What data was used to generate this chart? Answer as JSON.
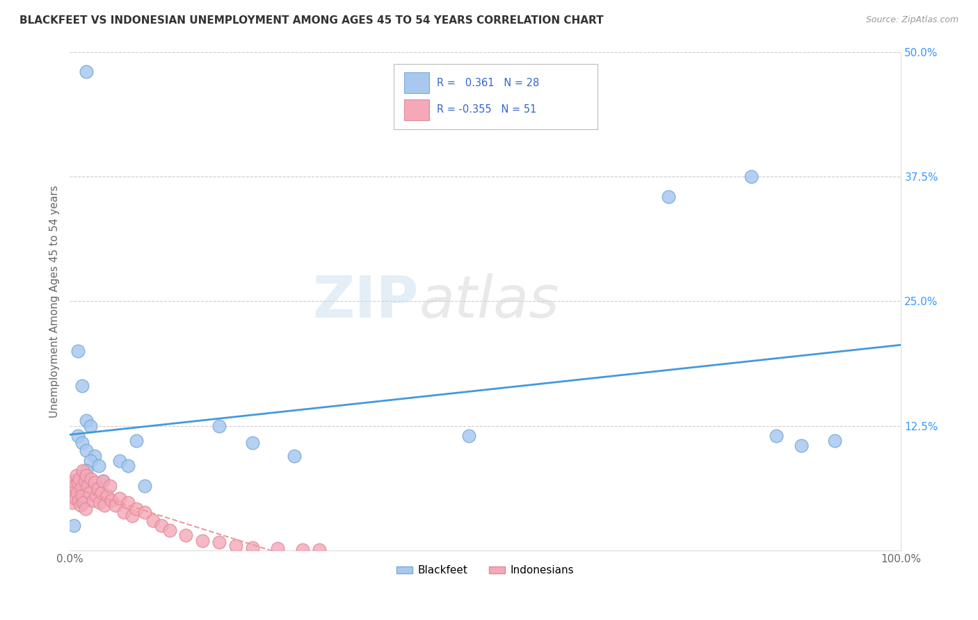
{
  "title": "BLACKFEET VS INDONESIAN UNEMPLOYMENT AMONG AGES 45 TO 54 YEARS CORRELATION CHART",
  "source": "Source: ZipAtlas.com",
  "ylabel": "Unemployment Among Ages 45 to 54 years",
  "xlim": [
    0.0,
    1.0
  ],
  "ylim": [
    0.0,
    0.5
  ],
  "xticks": [
    0.0,
    0.25,
    0.5,
    0.75,
    1.0
  ],
  "xticklabels": [
    "0.0%",
    "",
    "",
    "",
    "100.0%"
  ],
  "yticks": [
    0.0,
    0.125,
    0.25,
    0.375,
    0.5
  ],
  "yticklabels": [
    "",
    "12.5%",
    "25.0%",
    "37.5%",
    "50.0%"
  ],
  "blackfeet_color": "#a8c8f0",
  "indonesian_color": "#f4a8b8",
  "blackfeet_edge": "#7aaad4",
  "indonesian_edge": "#e08898",
  "trend_blue": "#4499dd",
  "trend_pink": "#ee9999",
  "R_blackfeet": 0.361,
  "N_blackfeet": 28,
  "R_indonesian": -0.355,
  "N_indonesian": 51,
  "blackfeet_x": [
    0.02,
    0.01,
    0.015,
    0.02,
    0.025,
    0.01,
    0.015,
    0.02,
    0.03,
    0.025,
    0.035,
    0.02,
    0.04,
    0.015,
    0.18,
    0.22,
    0.27,
    0.48,
    0.72,
    0.82,
    0.85,
    0.88,
    0.92,
    0.005,
    0.08,
    0.06,
    0.07,
    0.09
  ],
  "blackfeet_y": [
    0.48,
    0.2,
    0.165,
    0.13,
    0.125,
    0.115,
    0.108,
    0.1,
    0.095,
    0.09,
    0.085,
    0.08,
    0.07,
    0.065,
    0.125,
    0.108,
    0.095,
    0.115,
    0.355,
    0.375,
    0.115,
    0.105,
    0.11,
    0.025,
    0.11,
    0.09,
    0.085,
    0.065
  ],
  "indonesian_x": [
    0.002,
    0.003,
    0.004,
    0.005,
    0.006,
    0.007,
    0.008,
    0.009,
    0.01,
    0.011,
    0.012,
    0.013,
    0.014,
    0.015,
    0.016,
    0.017,
    0.018,
    0.019,
    0.02,
    0.022,
    0.024,
    0.026,
    0.028,
    0.03,
    0.032,
    0.034,
    0.036,
    0.038,
    0.04,
    0.042,
    0.045,
    0.048,
    0.05,
    0.055,
    0.06,
    0.065,
    0.07,
    0.075,
    0.08,
    0.09,
    0.1,
    0.11,
    0.12,
    0.14,
    0.16,
    0.18,
    0.2,
    0.22,
    0.25,
    0.28,
    0.3
  ],
  "indonesian_y": [
    0.055,
    0.048,
    0.06,
    0.07,
    0.065,
    0.052,
    0.075,
    0.058,
    0.068,
    0.05,
    0.072,
    0.045,
    0.063,
    0.055,
    0.08,
    0.048,
    0.07,
    0.042,
    0.075,
    0.065,
    0.058,
    0.072,
    0.05,
    0.068,
    0.055,
    0.062,
    0.048,
    0.058,
    0.07,
    0.045,
    0.055,
    0.065,
    0.05,
    0.045,
    0.052,
    0.038,
    0.048,
    0.035,
    0.042,
    0.038,
    0.03,
    0.025,
    0.02,
    0.015,
    0.01,
    0.008,
    0.005,
    0.003,
    0.002,
    0.001,
    0.001
  ]
}
